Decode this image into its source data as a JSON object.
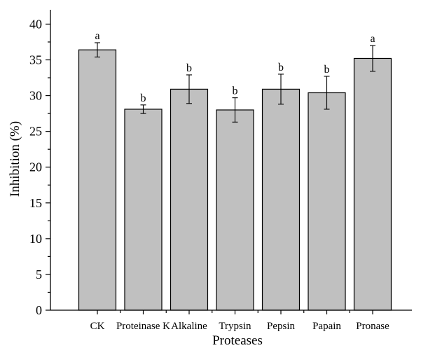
{
  "chart_data": {
    "type": "bar",
    "xlabel": "Proteases",
    "ylabel": "Inhibition (%)",
    "ylim": [
      0,
      42
    ],
    "yticks": [
      0,
      5,
      10,
      15,
      20,
      25,
      30,
      35,
      40
    ],
    "categories": [
      "CK",
      "Proteinase K",
      "Alkaline",
      "Trypsin",
      "Pepsin",
      "Papain",
      "Pronase"
    ],
    "values": [
      36.4,
      28.1,
      30.9,
      28.0,
      30.9,
      30.4,
      35.2
    ],
    "errors": [
      1.0,
      0.6,
      2.0,
      1.7,
      2.1,
      2.3,
      1.8
    ],
    "significance": [
      "a",
      "b",
      "b",
      "b",
      "b",
      "b",
      "a"
    ],
    "bar_color": "#c0c0c0",
    "grid": false,
    "legend": "none"
  }
}
